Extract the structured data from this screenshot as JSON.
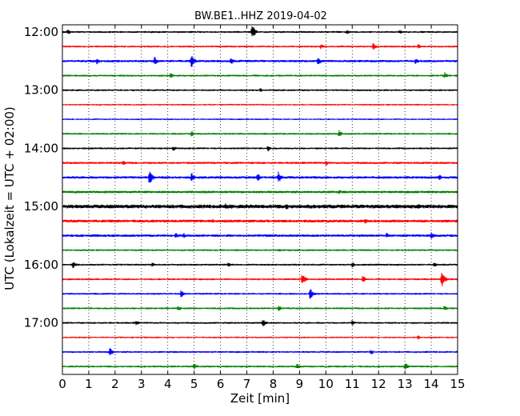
{
  "chart_data": {
    "type": "line",
    "title": "BW.BE1..HHZ 2019-04-02",
    "xlabel": "Zeit  [min]",
    "ylabel": "UTC (Lokalzeit = UTC + 02:00)",
    "xlim": [
      0,
      15
    ],
    "x_ticks": [
      "0",
      "1",
      "2",
      "3",
      "4",
      "5",
      "6",
      "7",
      "8",
      "9",
      "10",
      "11",
      "12",
      "13",
      "14",
      "15"
    ],
    "y_ticks": [
      "12:00",
      "13:00",
      "14:00",
      "15:00",
      "16:00",
      "17:00"
    ],
    "grid": "vertical dotted",
    "colors": [
      "#000000",
      "#ff0000",
      "#0000ff",
      "#008000"
    ],
    "traces": [
      {
        "start": "12:00",
        "noise": 1.2,
        "events": [
          [
            0.2,
            4
          ],
          [
            7.2,
            10
          ],
          [
            10.8,
            4
          ],
          [
            12.8,
            3
          ]
        ]
      },
      {
        "start": "12:15",
        "noise": 1.2,
        "events": [
          [
            9.8,
            4
          ],
          [
            11.8,
            6
          ],
          [
            13.5,
            4
          ]
        ]
      },
      {
        "start": "12:30",
        "noise": 1.5,
        "events": [
          [
            1.3,
            5
          ],
          [
            3.5,
            6
          ],
          [
            4.9,
            9
          ],
          [
            6.4,
            5
          ],
          [
            9.7,
            6
          ],
          [
            13.4,
            5
          ]
        ]
      },
      {
        "start": "12:45",
        "noise": 1.2,
        "events": [
          [
            4.1,
            4
          ],
          [
            14.5,
            5
          ]
        ]
      },
      {
        "start": "13:00",
        "noise": 1.2,
        "events": [
          [
            7.5,
            3
          ]
        ]
      },
      {
        "start": "13:15",
        "noise": 1.0,
        "events": []
      },
      {
        "start": "13:30",
        "noise": 1.0,
        "events": []
      },
      {
        "start": "13:45",
        "noise": 1.2,
        "events": [
          [
            4.9,
            4
          ],
          [
            10.5,
            5
          ]
        ]
      },
      {
        "start": "14:00",
        "noise": 1.2,
        "events": [
          [
            4.2,
            4
          ],
          [
            7.8,
            4
          ]
        ]
      },
      {
        "start": "14:15",
        "noise": 1.4,
        "events": [
          [
            2.3,
            4
          ],
          [
            10.0,
            4
          ]
        ]
      },
      {
        "start": "14:30",
        "noise": 1.6,
        "events": [
          [
            3.3,
            10
          ],
          [
            4.9,
            7
          ],
          [
            7.4,
            6
          ],
          [
            8.2,
            8
          ],
          [
            14.3,
            4
          ]
        ]
      },
      {
        "start": "14:45",
        "noise": 1.6,
        "events": [
          [
            10.5,
            3
          ]
        ]
      },
      {
        "start": "15:00",
        "noise": 2.4,
        "events": [
          [
            6.2,
            6
          ],
          [
            8.5,
            5
          ],
          [
            13.5,
            4
          ]
        ]
      },
      {
        "start": "15:15",
        "noise": 1.8,
        "events": [
          [
            5.7,
            4
          ],
          [
            11.5,
            4
          ]
        ]
      },
      {
        "start": "15:30",
        "noise": 1.6,
        "events": [
          [
            4.3,
            4
          ],
          [
            4.6,
            4
          ],
          [
            12.3,
            4
          ],
          [
            14.0,
            5
          ]
        ]
      },
      {
        "start": "15:45",
        "noise": 1.2,
        "events": [
          [
            8.2,
            3
          ]
        ]
      },
      {
        "start": "16:00",
        "noise": 1.2,
        "events": [
          [
            0.4,
            5
          ],
          [
            3.4,
            4
          ],
          [
            6.3,
            4
          ],
          [
            11.0,
            4
          ],
          [
            14.1,
            4
          ]
        ]
      },
      {
        "start": "16:15",
        "noise": 1.2,
        "events": [
          [
            9.1,
            8
          ],
          [
            11.4,
            5
          ],
          [
            14.4,
            11
          ]
        ]
      },
      {
        "start": "16:30",
        "noise": 1.2,
        "events": [
          [
            4.5,
            5
          ],
          [
            9.4,
            8
          ]
        ]
      },
      {
        "start": "16:45",
        "noise": 1.2,
        "events": [
          [
            4.4,
            4
          ],
          [
            8.2,
            4
          ],
          [
            14.5,
            4
          ]
        ]
      },
      {
        "start": "17:00",
        "noise": 1.2,
        "events": [
          [
            2.8,
            4
          ],
          [
            7.6,
            6
          ],
          [
            11.0,
            4
          ]
        ]
      },
      {
        "start": "17:15",
        "noise": 1.0,
        "events": [
          [
            13.5,
            3
          ]
        ]
      },
      {
        "start": "17:30",
        "noise": 1.2,
        "events": [
          [
            1.8,
            6
          ],
          [
            11.7,
            4
          ]
        ]
      },
      {
        "start": "17:45",
        "noise": 1.2,
        "events": [
          [
            5.0,
            5
          ],
          [
            8.9,
            4
          ],
          [
            13.0,
            6
          ]
        ]
      }
    ]
  }
}
